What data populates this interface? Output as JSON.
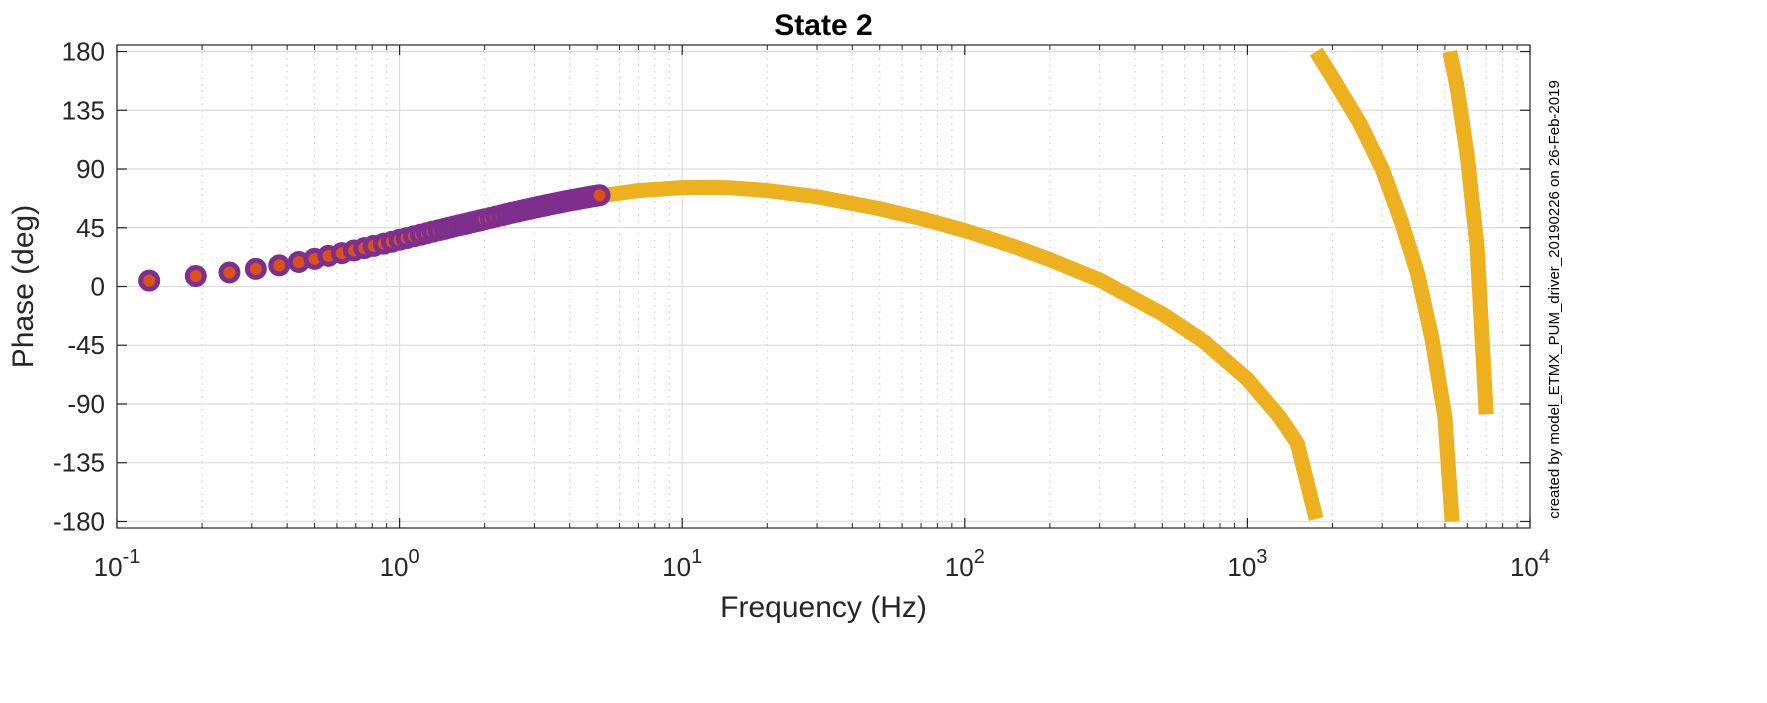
{
  "chart_data": {
    "type": "scatter",
    "title": "State 2",
    "xlabel": "Frequency (Hz)",
    "ylabel": "Phase (deg)",
    "x_scale": "log",
    "xlim": [
      0.1,
      10000
    ],
    "ylim": [
      -185,
      185
    ],
    "grid": true,
    "x_ticks": [
      {
        "value": 0.1,
        "base": "10",
        "exp": "-1"
      },
      {
        "value": 1,
        "base": "10",
        "exp": "0"
      },
      {
        "value": 10,
        "base": "10",
        "exp": "1"
      },
      {
        "value": 100,
        "base": "10",
        "exp": "2"
      },
      {
        "value": 1000,
        "base": "10",
        "exp": "3"
      },
      {
        "value": 10000,
        "base": "10",
        "exp": "4"
      }
    ],
    "y_ticks": [
      {
        "value": 180,
        "label": "180"
      },
      {
        "value": 135,
        "label": "135"
      },
      {
        "value": 90,
        "label": "90"
      },
      {
        "value": 45,
        "label": "45"
      },
      {
        "value": 0,
        "label": "0"
      },
      {
        "value": -45,
        "label": "-45"
      },
      {
        "value": -90,
        "label": "-90"
      },
      {
        "value": -135,
        "label": "-135"
      },
      {
        "value": -180,
        "label": "-180"
      }
    ],
    "annotation": "created by model_ETMX_PUM_driver_20190226 on 26-Feb-2019",
    "colors": {
      "measurement_marker_edge": "#7E2F8E",
      "measurement_marker_fill": "#D95319",
      "model": "#EDB120",
      "grid_major": "#dcdcdc",
      "grid_minor": "#c8c8c8",
      "axis": "#262626"
    },
    "series": [
      {
        "kind": "measurement",
        "x": [
          0.13,
          0.19,
          0.25,
          0.31,
          0.375,
          0.44,
          0.5,
          0.56,
          0.625,
          0.69,
          0.75,
          0.81,
          0.88,
          0.94,
          1.0,
          1.06,
          1.125,
          1.19,
          1.25,
          1.31,
          1.375,
          1.44,
          1.5,
          1.56,
          1.625,
          1.69,
          1.75,
          1.81,
          1.88,
          1.94,
          2.0,
          2.1,
          2.2,
          2.3,
          2.4,
          2.5,
          2.6,
          2.7,
          2.8,
          2.9,
          3.0,
          3.1,
          3.2,
          3.3,
          3.4,
          3.5,
          3.6,
          3.7,
          3.8,
          3.9,
          4.0,
          4.1,
          4.2,
          4.3,
          4.4,
          4.5,
          4.6,
          4.7,
          4.8,
          4.9,
          5.0,
          5.1
        ],
        "y": [
          4.5,
          8.0,
          10.7,
          13.5,
          16.2,
          18.8,
          21.2,
          23.5,
          25.6,
          27.6,
          29.4,
          31.1,
          32.8,
          34.3,
          35.8,
          37.1,
          38.5,
          39.7,
          40.9,
          42.0,
          43.1,
          44.1,
          45.1,
          46.0,
          46.9,
          47.7,
          48.5,
          49.3,
          50.1,
          50.8,
          51.5,
          52.6,
          53.6,
          54.6,
          55.6,
          56.5,
          57.3,
          58.1,
          58.9,
          59.6,
          60.3,
          61.0,
          61.6,
          62.2,
          62.8,
          63.4,
          63.9,
          64.4,
          64.9,
          65.4,
          65.9,
          66.3,
          66.7,
          67.1,
          67.5,
          67.9,
          68.3,
          68.6,
          69.0,
          69.3,
          69.6,
          69.9
        ]
      },
      {
        "kind": "model",
        "segments": [
          {
            "x": [
              0.5,
              0.7,
              1.0,
              1.5,
              2.0,
              3.0,
              4.0,
              5.0,
              7.0,
              10.0,
              13.0,
              15.0,
              20.0,
              30.0,
              50.0,
              70.0,
              100.0,
              150.0,
              200.0,
              300.0,
              500.0,
              700.0,
              1000.0,
              1300.0,
              1500.0,
              1750.0
            ],
            "y": [
              20.8,
              27.5,
              34.8,
              44.2,
              50.8,
              59.4,
              65.1,
              69.1,
              73.5,
              75.8,
              75.9,
              75.5,
              73.5,
              68.7,
              59.5,
              52.1,
              42.9,
              30.6,
              20.5,
              5.0,
              -21.0,
              -42.0,
              -71.0,
              -100.0,
              -120.0,
              -178.0
            ]
          },
          {
            "x": [
              1750.0,
              2000.0,
              2500.0,
              3000.0,
              3500.0,
              4000.0,
              4500.0,
              5000.0,
              5300.0
            ],
            "y": [
              180.0,
              160.0,
              125.0,
              90.0,
              50.0,
              10.0,
              -40.0,
              -100.0,
              -180.0
            ]
          },
          {
            "x": [
              5200.0,
              5500.0,
              6000.0,
              6500.0,
              7000.0
            ],
            "y": [
              180.0,
              155.0,
              100.0,
              30.0,
              -98.0
            ]
          }
        ]
      }
    ]
  }
}
